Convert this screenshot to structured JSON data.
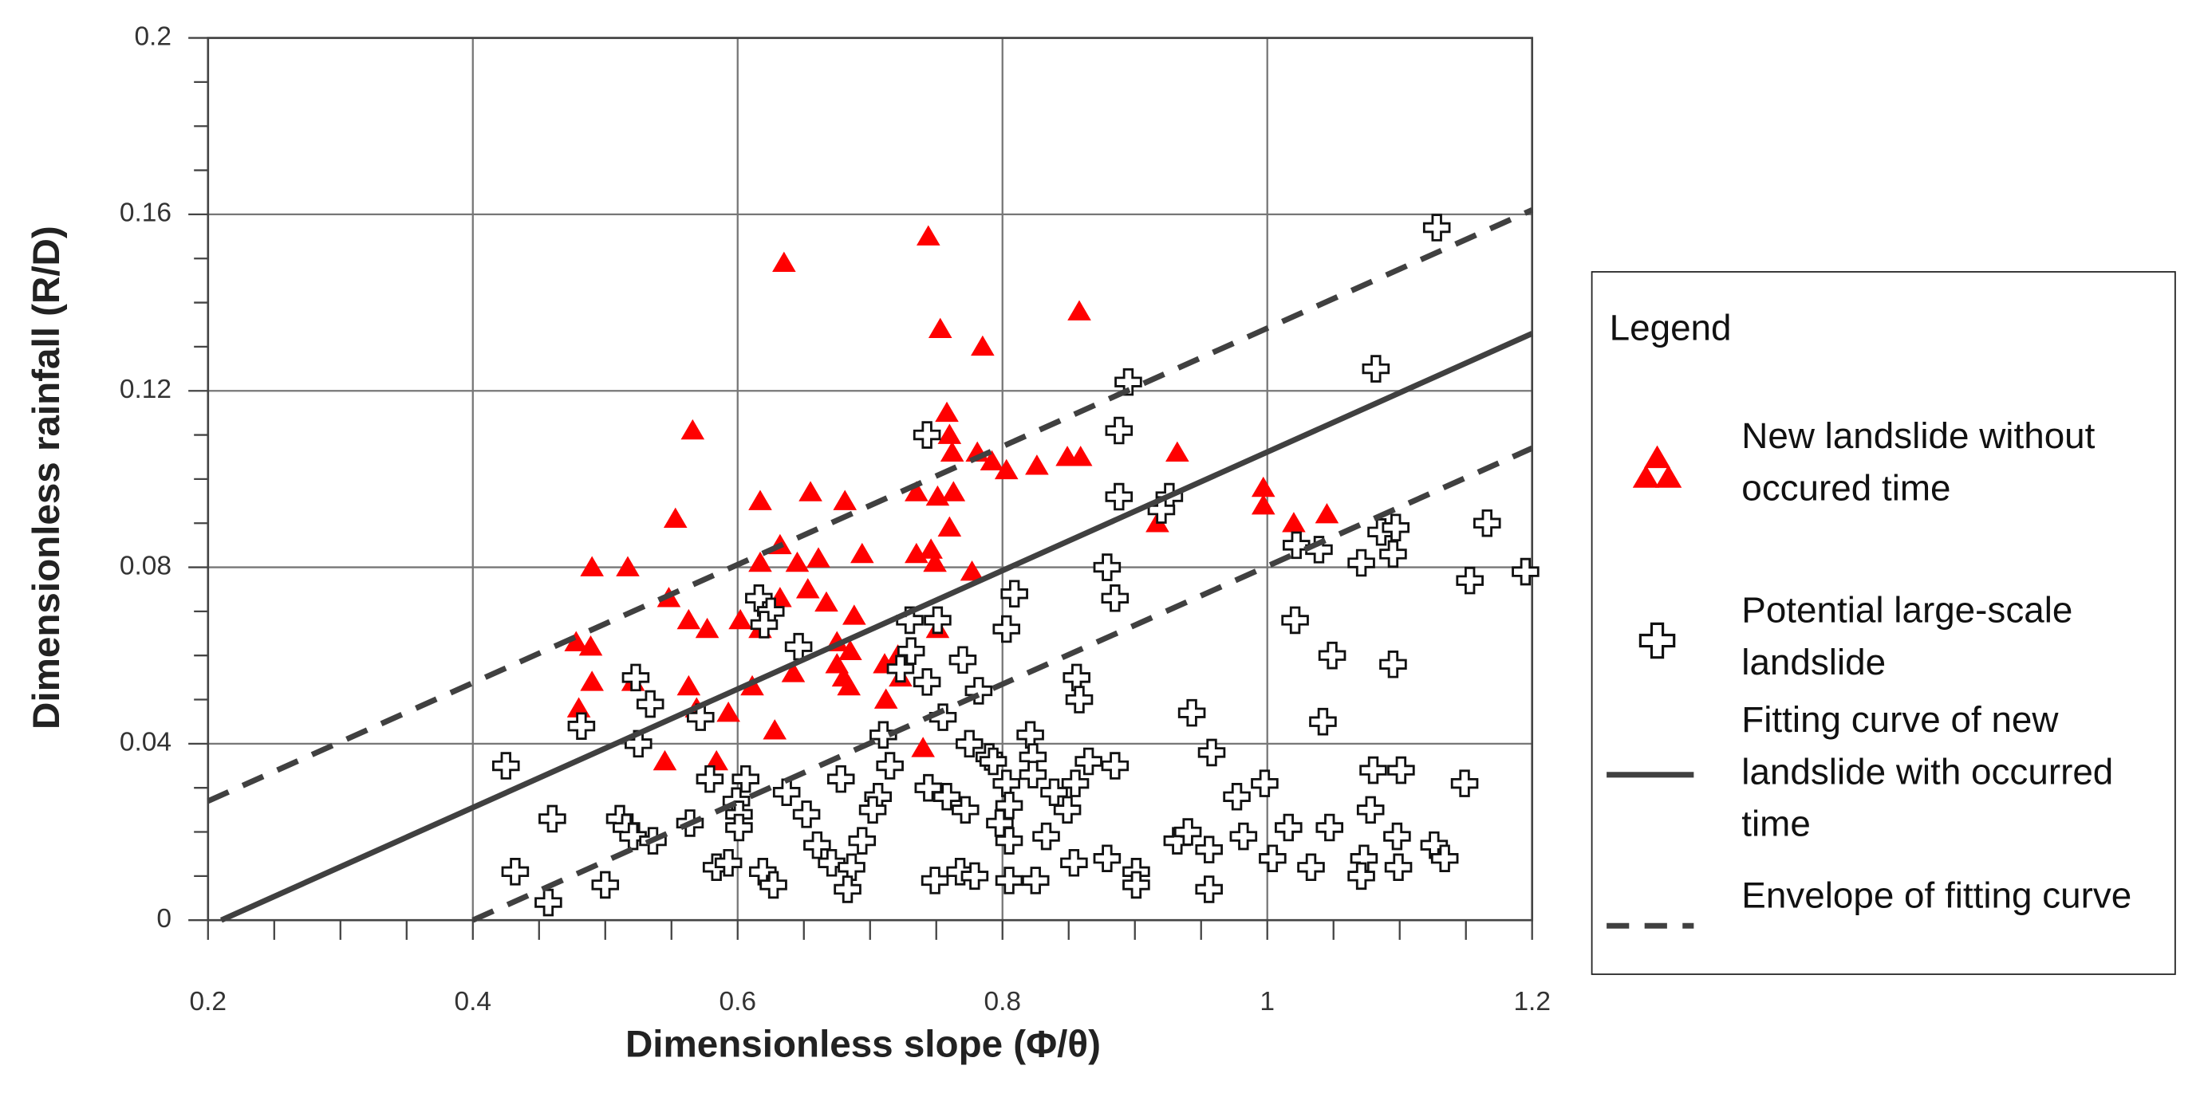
{
  "chart_data": {
    "type": "scatter",
    "xlabel": "Dimensionless slope (Φ/θ)",
    "ylabel": "Dimensionless rainfall (R/D)",
    "xlim": [
      0.2,
      1.2
    ],
    "ylim": [
      0,
      0.2
    ],
    "xticks": [
      0.2,
      0.4,
      0.6,
      0.8,
      1,
      1.2
    ],
    "yticks": [
      0,
      0.04,
      0.08,
      0.12,
      0.16,
      0.2
    ],
    "x_minor_ticks": [
      0.25,
      0.3,
      0.35,
      0.45,
      0.5,
      0.55,
      0.65,
      0.7,
      0.75,
      0.85,
      0.9,
      0.95,
      1.05,
      1.1,
      1.15
    ],
    "y_minor_ticks": [
      0.01,
      0.02,
      0.03,
      0.05,
      0.06,
      0.07,
      0.09,
      0.1,
      0.11,
      0.13,
      0.14,
      0.15,
      0.17,
      0.18,
      0.19
    ],
    "grid": true,
    "legend_title": "Legend",
    "legend_position": "right",
    "series": [
      {
        "name": "New landslide without occured time",
        "marker": "triangle",
        "color": "#ff0000",
        "x": [
          0.635,
          0.744,
          0.858,
          0.753,
          0.785,
          0.566,
          0.758,
          0.76,
          0.762,
          0.781,
          0.803,
          0.932,
          0.849,
          0.859,
          0.792,
          0.826,
          0.617,
          0.655,
          0.681,
          0.735,
          0.763,
          0.751,
          0.997,
          0.997,
          1.02,
          1.045,
          0.917,
          0.553,
          0.76,
          0.746,
          0.735,
          0.694,
          0.661,
          0.645,
          0.632,
          0.749,
          0.617,
          0.777,
          0.49,
          0.517,
          0.548,
          0.632,
          0.653,
          0.667,
          0.563,
          0.602,
          0.617,
          0.577,
          0.688,
          0.751,
          0.478,
          0.489,
          0.675,
          0.685,
          0.721,
          0.711,
          0.675,
          0.642,
          0.723,
          0.68,
          0.684,
          0.49,
          0.521,
          0.563,
          0.611,
          0.712,
          0.48,
          0.593,
          0.569,
          0.628,
          0.545,
          0.584,
          0.74
        ],
        "values": [
          0.149,
          0.155,
          0.138,
          0.134,
          0.13,
          0.111,
          0.115,
          0.11,
          0.106,
          0.106,
          0.102,
          0.106,
          0.105,
          0.105,
          0.104,
          0.103,
          0.095,
          0.097,
          0.095,
          0.097,
          0.097,
          0.096,
          0.098,
          0.094,
          0.09,
          0.092,
          0.09,
          0.091,
          0.089,
          0.084,
          0.083,
          0.083,
          0.082,
          0.081,
          0.085,
          0.081,
          0.081,
          0.079,
          0.08,
          0.08,
          0.073,
          0.073,
          0.075,
          0.072,
          0.068,
          0.068,
          0.066,
          0.066,
          0.069,
          0.066,
          0.063,
          0.062,
          0.063,
          0.061,
          0.06,
          0.058,
          0.058,
          0.056,
          0.055,
          0.055,
          0.053,
          0.054,
          0.054,
          0.053,
          0.053,
          0.05,
          0.048,
          0.047,
          0.048,
          0.043,
          0.036,
          0.036,
          0.039
        ]
      },
      {
        "name": "Potential large-scale landslide",
        "marker": "cross",
        "color": "#ffffff",
        "x": [
          1.128,
          1.082,
          0.895,
          0.743,
          0.888,
          0.926,
          0.888,
          0.92,
          1.022,
          1.039,
          1.086,
          1.097,
          1.095,
          1.071,
          1.166,
          1.195,
          1.153,
          0.879,
          0.885,
          0.809,
          0.616,
          0.625,
          0.751,
          1.021,
          0.803,
          0.73,
          0.62,
          0.646,
          0.731,
          1.049,
          0.77,
          1.095,
          0.723,
          0.523,
          0.743,
          0.782,
          0.856,
          0.858,
          0.534,
          0.572,
          0.755,
          0.943,
          1.042,
          0.482,
          0.71,
          0.821,
          0.525,
          0.775,
          0.79,
          0.823,
          0.958,
          0.425,
          0.715,
          0.793,
          0.865,
          0.885,
          1.08,
          1.101,
          0.823,
          0.579,
          0.606,
          0.678,
          0.803,
          0.855,
          0.998,
          1.149,
          0.744,
          0.599,
          0.637,
          0.706,
          0.758,
          0.839,
          0.977,
          0.46,
          0.511,
          0.601,
          0.652,
          0.702,
          0.772,
          0.805,
          0.849,
          1.078,
          0.564,
          0.516,
          1.016,
          1.047,
          0.798,
          0.521,
          0.833,
          0.932,
          0.982,
          1.098,
          0.694,
          0.536,
          1.126,
          0.805,
          0.94,
          0.66,
          0.601,
          1.134,
          0.956,
          0.854,
          0.879,
          0.671,
          1.004,
          1.033,
          1.073,
          1.099,
          0.584,
          0.593,
          0.432,
          0.686,
          0.768,
          0.779,
          0.749,
          0.805,
          0.825,
          0.901,
          1.071,
          0.619,
          0.627,
          0.683,
          0.5,
          0.901,
          0.956,
          0.457
        ],
        "values": [
          0.157,
          0.125,
          0.122,
          0.11,
          0.111,
          0.096,
          0.096,
          0.093,
          0.085,
          0.084,
          0.088,
          0.089,
          0.083,
          0.081,
          0.09,
          0.079,
          0.077,
          0.08,
          0.073,
          0.074,
          0.073,
          0.07,
          0.068,
          0.068,
          0.066,
          0.068,
          0.067,
          0.062,
          0.061,
          0.06,
          0.059,
          0.058,
          0.057,
          0.055,
          0.054,
          0.052,
          0.055,
          0.05,
          0.049,
          0.046,
          0.046,
          0.047,
          0.045,
          0.044,
          0.042,
          0.042,
          0.04,
          0.04,
          0.037,
          0.037,
          0.038,
          0.035,
          0.035,
          0.036,
          0.036,
          0.035,
          0.034,
          0.034,
          0.033,
          0.032,
          0.032,
          0.032,
          0.031,
          0.031,
          0.031,
          0.031,
          0.03,
          0.027,
          0.029,
          0.028,
          0.028,
          0.029,
          0.028,
          0.023,
          0.023,
          0.024,
          0.024,
          0.025,
          0.025,
          0.026,
          0.025,
          0.025,
          0.022,
          0.021,
          0.021,
          0.021,
          0.022,
          0.019,
          0.019,
          0.018,
          0.019,
          0.019,
          0.018,
          0.018,
          0.017,
          0.018,
          0.02,
          0.017,
          0.021,
          0.014,
          0.016,
          0.013,
          0.014,
          0.013,
          0.014,
          0.012,
          0.014,
          0.012,
          0.012,
          0.013,
          0.011,
          0.012,
          0.011,
          0.01,
          0.009,
          0.009,
          0.009,
          0.011,
          0.01,
          0.011,
          0.008,
          0.007,
          0.008,
          0.008,
          0.007,
          0.004
        ]
      },
      {
        "name": "Fitting curve of new landslide with occurred time",
        "marker": "line",
        "line_style": "solid",
        "color": "#404040",
        "x": [
          0.21,
          1.2
        ],
        "values": [
          0,
          0.133
        ]
      },
      {
        "name": "Envelope of fitting curve",
        "marker": "line",
        "line_style": "dashed",
        "color": "#404040",
        "x": [
          0.2,
          1.2,
          null,
          0.4,
          1.2
        ],
        "values": [
          0.027,
          0.161,
          null,
          0,
          0.107
        ]
      }
    ]
  }
}
